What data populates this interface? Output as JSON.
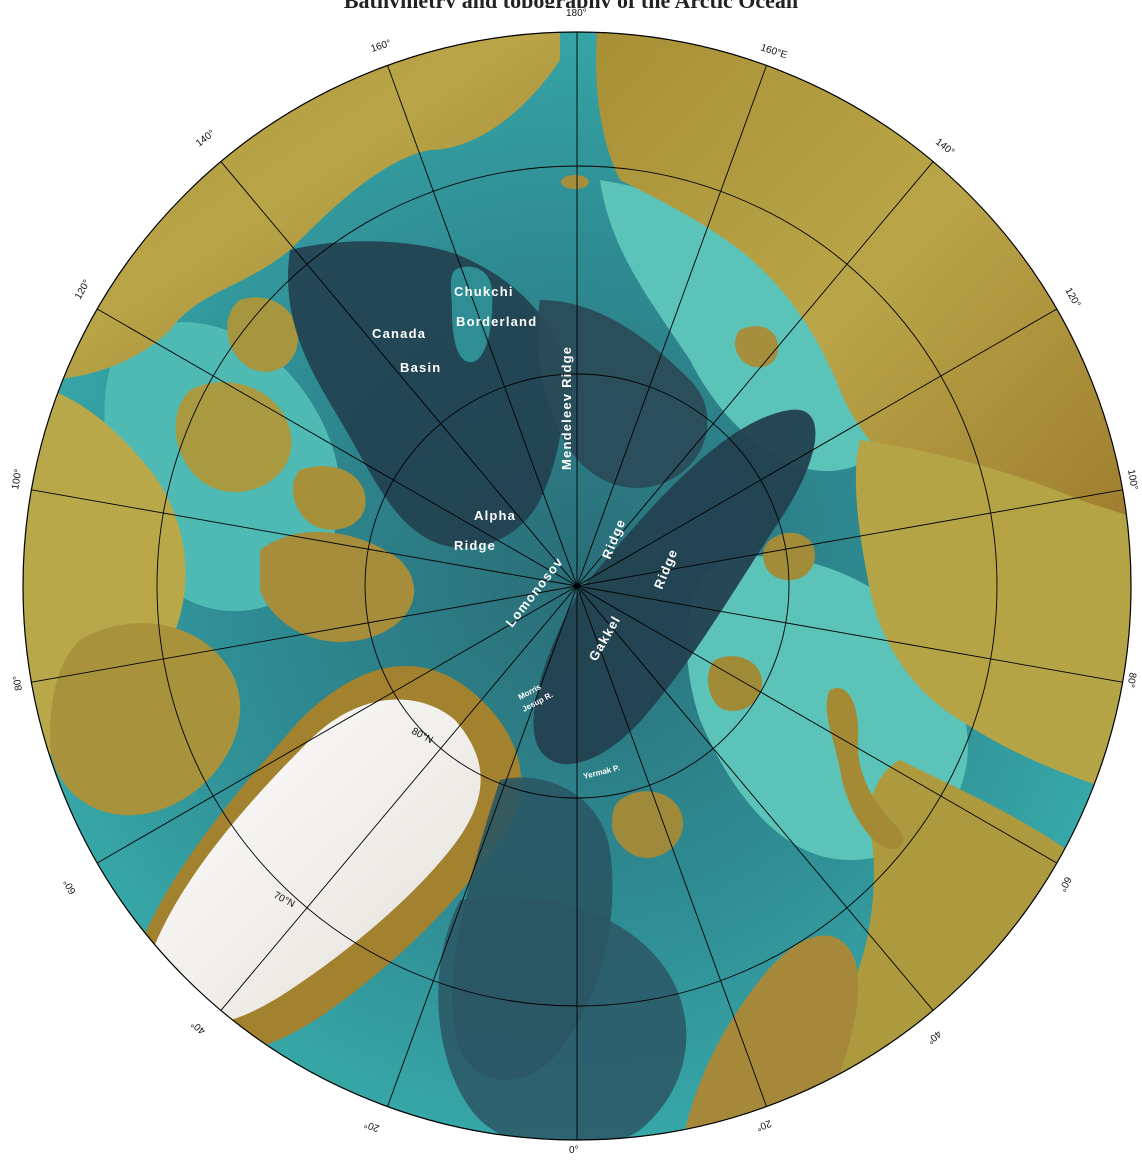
{
  "header": {
    "text": "Bathymetry and topography of the Arctic Ocean"
  },
  "map": {
    "feature_labels": {
      "canada": "Canada",
      "basin": "Basin",
      "chukchi": "Chukchi",
      "borderland": "Borderland",
      "mendeleev_ridge": "Mendeleev Ridge",
      "alpha": "Alpha",
      "alpha_ridge": "Ridge",
      "lomonosov": "Lomonosov",
      "lomonosov_ridge": "Ridge",
      "gakkel": "Gakkel",
      "gakkel_ridge": "Ridge",
      "morris_1": "Morris",
      "morris_2": "Jesup R.",
      "yermak": "Yermak P."
    },
    "longitude_labels": {
      "lon_180": "180°",
      "lon_160e": "160°E",
      "lon_160w": "160°",
      "lon_140e": "140°",
      "lon_140w": "140°",
      "lon_120e": "120°",
      "lon_120w": "120°",
      "lon_100e": "100°",
      "lon_100w": "100°",
      "lon_80e": "80°",
      "lon_80w": "80°",
      "lon_60e": "60°",
      "lon_60w": "60°",
      "lon_40e": "40°",
      "lon_40w": "40°",
      "lon_20e": "20°",
      "lon_20w": "20°",
      "lon_0": "0°"
    },
    "latitude_labels": {
      "lat_80n": "80°N",
      "lat_70n": "70°N"
    },
    "colors": {
      "deep_basin": "#23414f",
      "abyssal": "#2e5f6a",
      "slope": "#2f8d94",
      "shelf": "#3eb6b3",
      "shallow_shelf": "#6ccdbe",
      "lowland": "#8bb35a",
      "upland": "#b09a3c",
      "mountain": "#8a6422",
      "ice_sheet": "#f2efea",
      "graticule": "#000000"
    }
  }
}
